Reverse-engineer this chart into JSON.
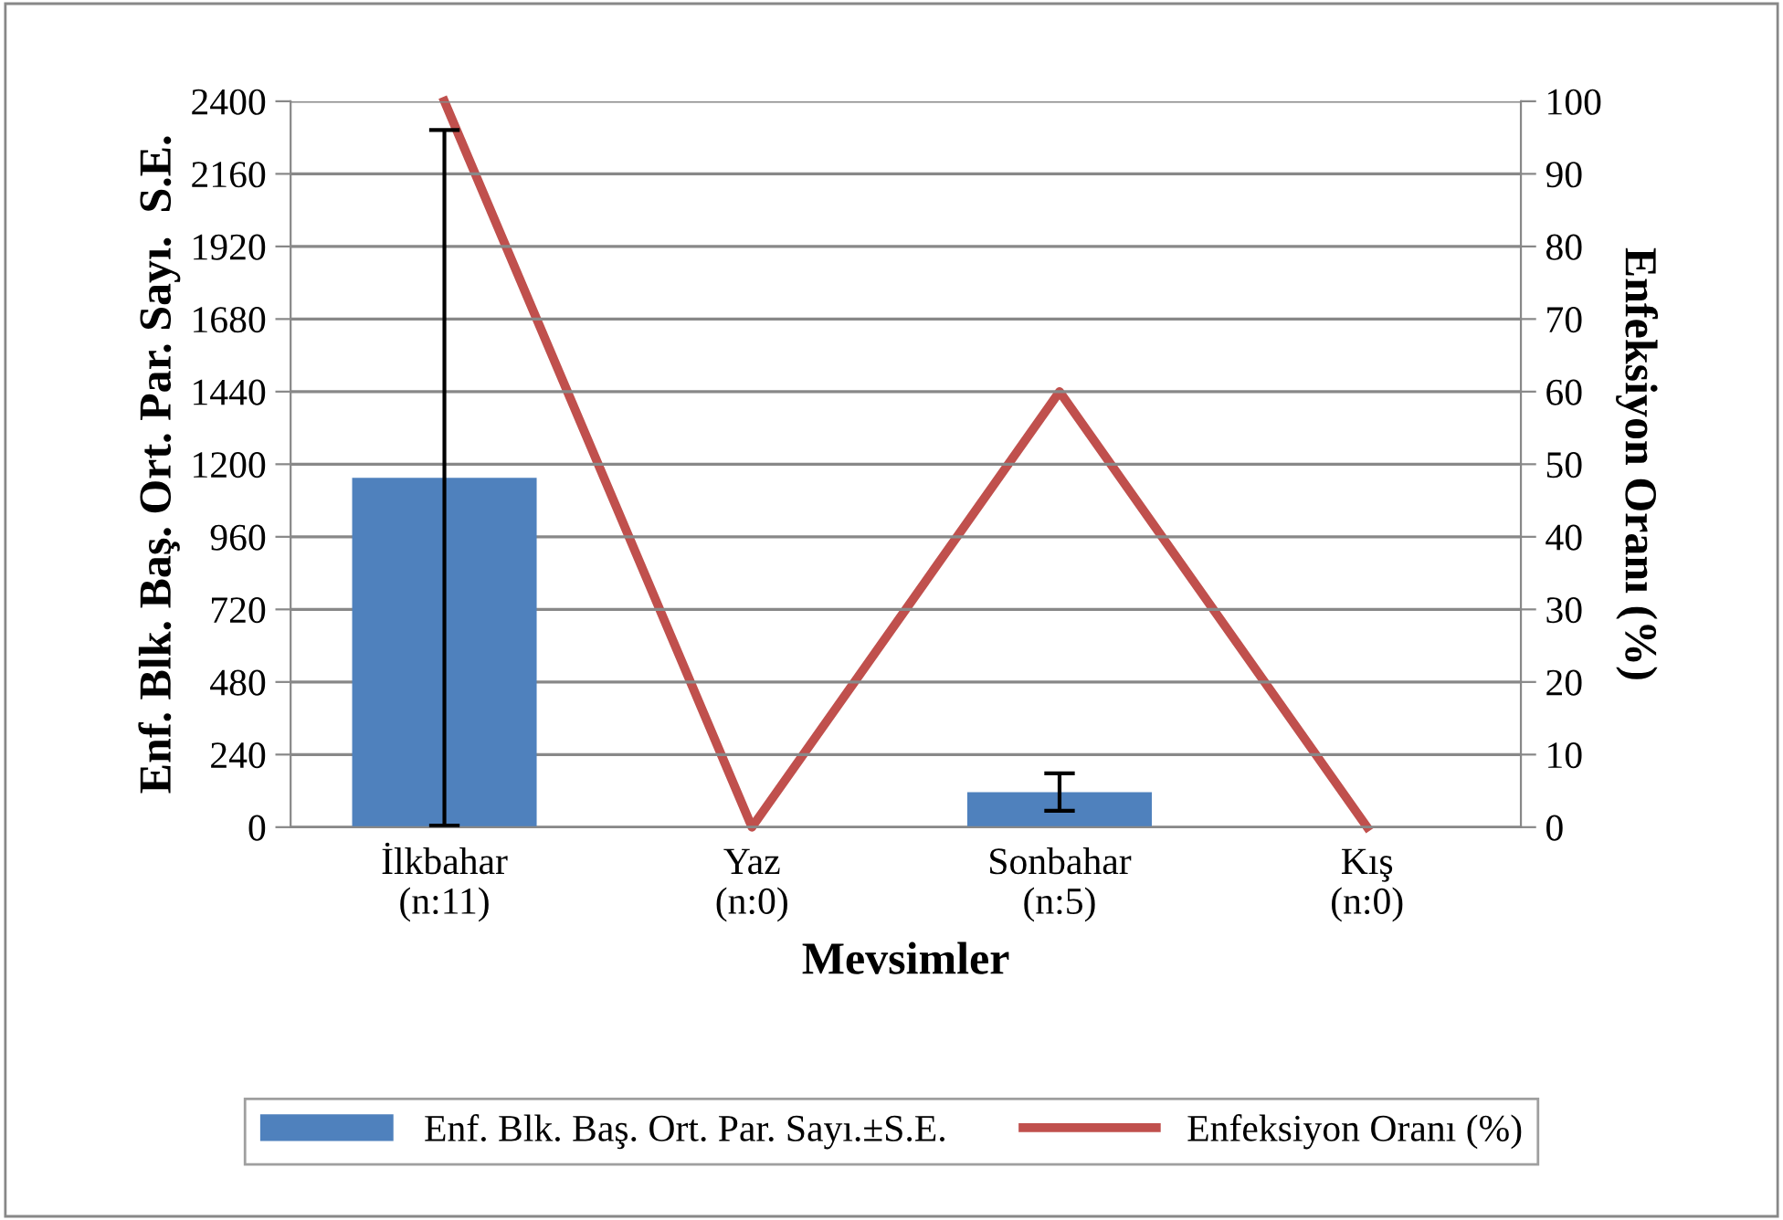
{
  "chart_data": {
    "type": "bar",
    "xlabel": "Mevsimler",
    "ylabel": "Enf. Blk. Baş. Ort. Par. Sayı.  S.E.",
    "y2label": "Enfeksiyon Oranı (%)",
    "categories": [
      "İlkbahar\n(n:11)",
      "Yaz\n(n:0)",
      "Sonbahar\n(n:5)",
      "Kış\n(n:0)"
    ],
    "series": [
      {
        "name": "Enf. Blk. Baş. Ort. Par. Sayı.±S.E.",
        "color": "#4f81bd",
        "values": [
          1155,
          0,
          116,
          0
        ],
        "errors": [
          1150,
          null,
          62,
          null
        ]
      },
      {
        "name": "Enfeksiyon Oranı (%)",
        "type": "line",
        "axis": "y2",
        "color": "#c0504d",
        "values": [
          100,
          0,
          60,
          0
        ]
      }
    ],
    "ylim": [
      0,
      2400
    ],
    "yticks": [
      0,
      240,
      480,
      720,
      960,
      1200,
      1440,
      1680,
      1920,
      2160,
      2400
    ],
    "y2lim": [
      0,
      100
    ],
    "y2ticks": [
      0,
      10,
      20,
      30,
      40,
      50,
      60,
      70,
      80,
      90,
      100
    ],
    "grid": "y",
    "legend": "bottom"
  }
}
